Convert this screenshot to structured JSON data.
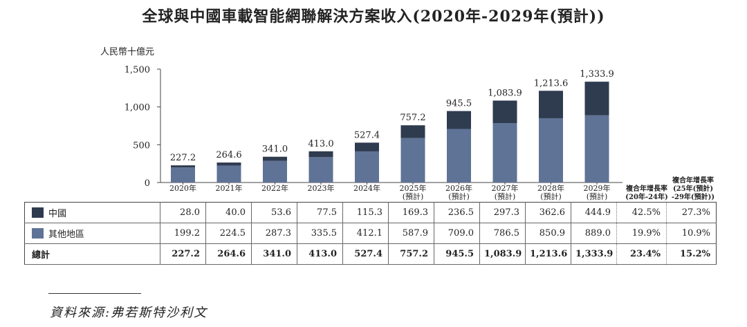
{
  "title": "全球與中國車載智能網聯解決方案收入(2020年-2029年(預計))",
  "chart_data": {
    "type": "bar",
    "stacked": true,
    "unit": "人民幣十億元",
    "categories": [
      "2020年",
      "2021年",
      "2022年",
      "2023年",
      "2024年",
      "2025年",
      "2026年",
      "2027年",
      "2028年",
      "2029年"
    ],
    "category_subs": [
      "",
      "",
      "",
      "",
      "",
      "(預計)",
      "(預計)",
      "(預計)",
      "(預計)",
      "(預計)"
    ],
    "series": [
      {
        "name": "其他地區",
        "values": [
          199.2,
          224.5,
          287.3,
          335.5,
          412.1,
          587.9,
          709.0,
          786.5,
          850.9,
          889.0
        ],
        "color": "#5f7396"
      },
      {
        "name": "中國",
        "values": [
          28.0,
          40.0,
          53.6,
          77.5,
          115.3,
          169.3,
          236.5,
          297.3,
          362.6,
          444.9
        ],
        "color": "#2f3b4f"
      }
    ],
    "totals": [
      227.2,
      264.6,
      341.0,
      413.0,
      527.4,
      757.2,
      945.5,
      1083.9,
      1213.6,
      1333.9
    ],
    "total_labels": [
      "227.2",
      "264.6",
      "341.0",
      "413.0",
      "527.4",
      "757.2",
      "945.5",
      "1,083.9",
      "1,213.6",
      "1,333.9"
    ],
    "y_ticks": [
      "0",
      "500",
      "1,000",
      "1,500"
    ],
    "ylim": [
      0,
      1500
    ]
  },
  "cagr_headers": [
    {
      "line1": "複合年增長率",
      "line2": "(20年-24年)"
    },
    {
      "line1": "複合年增長率",
      "line2": "(25年(預計)",
      "line3": "-29年(預計))"
    }
  ],
  "table": {
    "rows": [
      {
        "label": "中國",
        "color": "#2f3b4f",
        "values": [
          "28.0",
          "40.0",
          "53.6",
          "77.5",
          "115.3",
          "169.3",
          "236.5",
          "297.3",
          "362.6",
          "444.9"
        ],
        "cagr": [
          "42.5%",
          "27.3%"
        ]
      },
      {
        "label": "其他地區",
        "color": "#5f7396",
        "values": [
          "199.2",
          "224.5",
          "287.3",
          "335.5",
          "412.1",
          "587.9",
          "709.0",
          "786.5",
          "850.9",
          "889.0"
        ],
        "cagr": [
          "19.9%",
          "10.9%"
        ]
      },
      {
        "label": "總計",
        "color": "",
        "values": [
          "227.2",
          "264.6",
          "341.0",
          "413.0",
          "527.4",
          "757.2",
          "945.5",
          "1,083.9",
          "1,213.6",
          "1,333.9"
        ],
        "cagr": [
          "23.4%",
          "15.2%"
        ]
      }
    ]
  },
  "source": "資料來源:弗若斯特沙利文"
}
